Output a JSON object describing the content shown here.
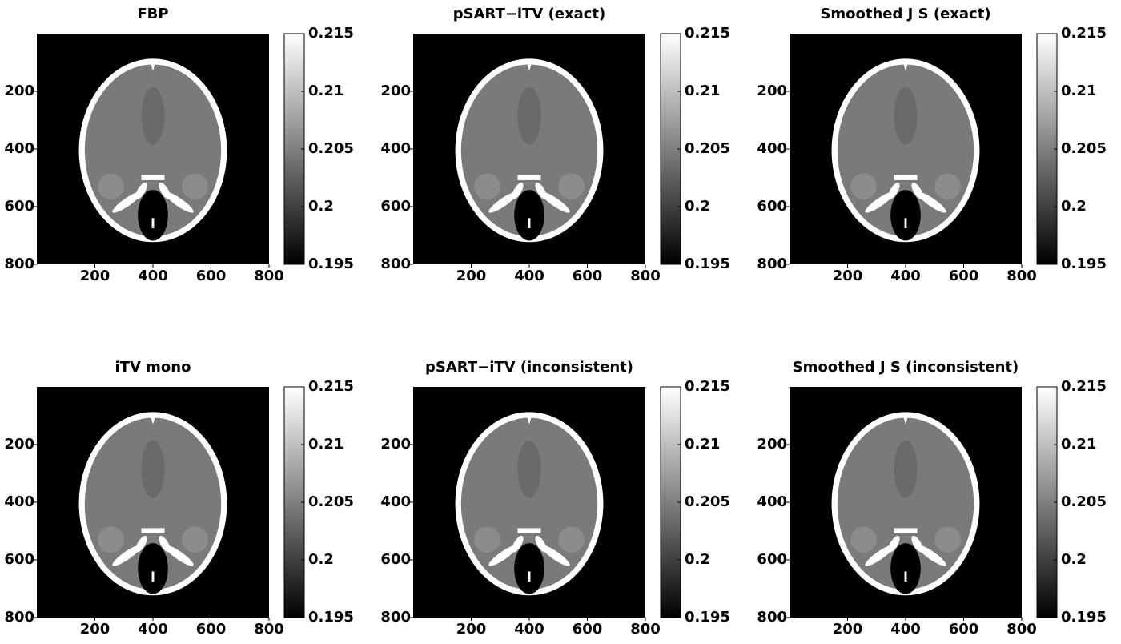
{
  "chart_data": [
    {
      "type": "image",
      "title": "FBP",
      "xlim": [
        0,
        800
      ],
      "ylim": [
        0,
        800
      ],
      "y_reversed": true,
      "xticks": [
        200,
        400,
        600,
        800
      ],
      "yticks": [
        200,
        400,
        600,
        800
      ],
      "colormap": "gray",
      "clim": [
        0.195,
        0.215
      ],
      "cticks": [
        0.195,
        0.2,
        0.205,
        0.21,
        0.215
      ]
    },
    {
      "type": "image",
      "title": "pSART−iTV (exact)",
      "xlim": [
        0,
        800
      ],
      "ylim": [
        0,
        800
      ],
      "y_reversed": true,
      "xticks": [
        200,
        400,
        600,
        800
      ],
      "yticks": [
        200,
        400,
        600,
        800
      ],
      "colormap": "gray",
      "clim": [
        0.195,
        0.215
      ],
      "cticks": [
        0.195,
        0.2,
        0.205,
        0.21,
        0.215
      ]
    },
    {
      "type": "image",
      "title": "Smoothed J S (exact)",
      "xlim": [
        0,
        800
      ],
      "ylim": [
        0,
        800
      ],
      "y_reversed": true,
      "xticks": [
        200,
        400,
        600,
        800
      ],
      "yticks": [
        200,
        400,
        600,
        800
      ],
      "colormap": "gray",
      "clim": [
        0.195,
        0.215
      ],
      "cticks": [
        0.195,
        0.2,
        0.205,
        0.21,
        0.215
      ]
    },
    {
      "type": "image",
      "title": "iTV mono",
      "xlim": [
        0,
        800
      ],
      "ylim": [
        0,
        800
      ],
      "y_reversed": true,
      "xticks": [
        200,
        400,
        600,
        800
      ],
      "yticks": [
        200,
        400,
        600,
        800
      ],
      "colormap": "gray",
      "clim": [
        0.195,
        0.215
      ],
      "cticks": [
        0.195,
        0.2,
        0.205,
        0.21,
        0.215
      ]
    },
    {
      "type": "image",
      "title": "pSART−iTV (inconsistent)",
      "xlim": [
        0,
        800
      ],
      "ylim": [
        0,
        800
      ],
      "y_reversed": true,
      "xticks": [
        200,
        400,
        600,
        800
      ],
      "yticks": [
        200,
        400,
        600,
        800
      ],
      "colormap": "gray",
      "clim": [
        0.195,
        0.215
      ],
      "cticks": [
        0.195,
        0.2,
        0.205,
        0.21,
        0.215
      ]
    },
    {
      "type": "image",
      "title": "Smoothed J S (inconsistent)",
      "xlim": [
        0,
        800
      ],
      "ylim": [
        0,
        800
      ],
      "y_reversed": true,
      "xticks": [
        200,
        400,
        600,
        800
      ],
      "yticks": [
        200,
        400,
        600,
        800
      ],
      "colormap": "gray",
      "clim": [
        0.195,
        0.215
      ],
      "cticks": [
        0.195,
        0.2,
        0.205,
        0.21,
        0.215
      ]
    }
  ]
}
